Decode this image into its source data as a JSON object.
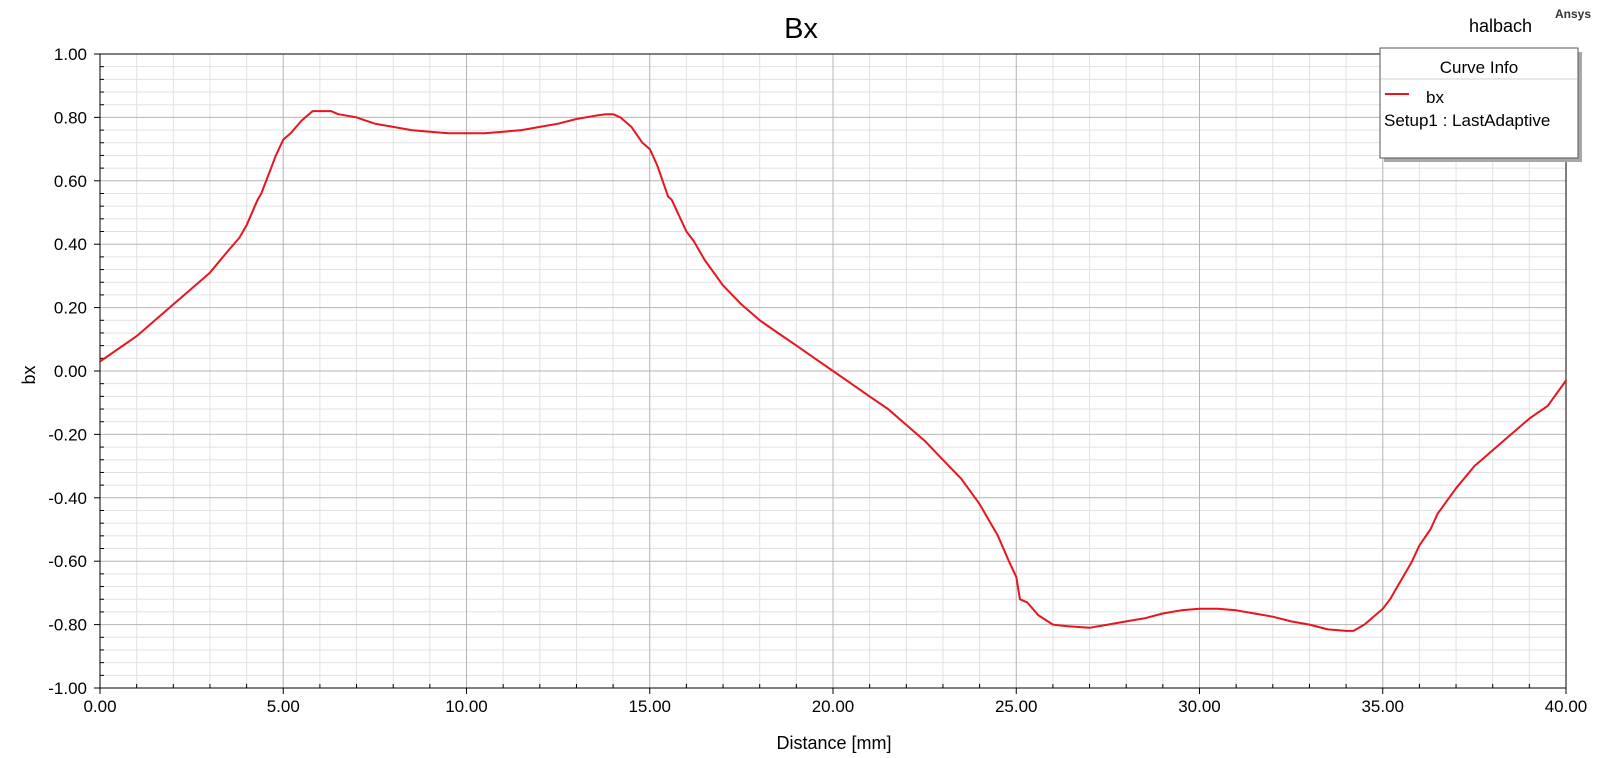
{
  "header": {
    "project_name": "halbach",
    "brand": "Ansys"
  },
  "legend": {
    "title": "Curve Info",
    "entries": [
      {
        "name": "bx",
        "detail": "Setup1 : LastAdaptive"
      }
    ],
    "position": "top-right"
  },
  "colors": {
    "series": "#e8141e",
    "major_grid": "#b4b4b4",
    "minor_grid": "#e1e1e1",
    "axis": "#000000"
  },
  "chart_data": {
    "type": "line",
    "title": "Bx",
    "xlabel": "Distance [mm]",
    "ylabel": "bx",
    "xlim": [
      0,
      40
    ],
    "ylim": [
      -1,
      1
    ],
    "x_ticks": [
      0,
      5,
      10,
      15,
      20,
      25,
      30,
      35,
      40
    ],
    "y_ticks": [
      -1,
      -0.8,
      -0.6,
      -0.4,
      -0.2,
      0,
      0.2,
      0.4,
      0.6,
      0.8,
      1
    ],
    "x_tick_labels": [
      "0.00",
      "5.00",
      "10.00",
      "15.00",
      "20.00",
      "25.00",
      "30.00",
      "35.00",
      "40.00"
    ],
    "y_tick_labels": [
      "-1.00",
      "-0.80",
      "-0.60",
      "-0.40",
      "-0.20",
      "0.00",
      "0.20",
      "0.40",
      "0.60",
      "0.80",
      "1.00"
    ],
    "grid": true,
    "series": [
      {
        "name": "bx",
        "x": [
          0.0,
          0.5,
          1.0,
          1.5,
          2.0,
          2.5,
          3.0,
          3.5,
          3.8,
          4.0,
          4.3,
          4.4,
          4.6,
          4.8,
          5.0,
          5.2,
          5.5,
          5.8,
          6.0,
          6.3,
          6.5,
          7.0,
          7.5,
          8.0,
          8.5,
          9.0,
          9.5,
          10.0,
          10.5,
          11.0,
          11.5,
          12.0,
          12.5,
          13.0,
          13.5,
          13.8,
          14.0,
          14.2,
          14.5,
          14.8,
          15.0,
          15.2,
          15.5,
          15.6,
          16.0,
          16.2,
          16.5,
          17.0,
          17.5,
          18.0,
          18.5,
          19.0,
          19.5,
          20.0,
          20.5,
          21.0,
          21.5,
          22.0,
          22.5,
          23.0,
          23.5,
          24.0,
          24.5,
          24.8,
          25.0,
          25.1,
          25.3,
          25.6,
          26.0,
          26.4,
          27.0,
          27.5,
          28.0,
          28.5,
          29.0,
          29.5,
          30.0,
          30.5,
          31.0,
          31.5,
          32.0,
          32.5,
          33.0,
          33.5,
          34.0,
          34.2,
          34.5,
          35.0,
          35.2,
          35.5,
          35.8,
          36.0,
          36.3,
          36.5,
          37.0,
          37.5,
          38.0,
          38.5,
          39.0,
          39.5,
          40.0
        ],
        "y": [
          0.03,
          0.07,
          0.11,
          0.16,
          0.21,
          0.26,
          0.31,
          0.38,
          0.42,
          0.46,
          0.54,
          0.56,
          0.62,
          0.68,
          0.73,
          0.75,
          0.79,
          0.82,
          0.82,
          0.82,
          0.81,
          0.8,
          0.78,
          0.77,
          0.76,
          0.755,
          0.75,
          0.75,
          0.75,
          0.755,
          0.76,
          0.77,
          0.78,
          0.795,
          0.805,
          0.81,
          0.81,
          0.8,
          0.77,
          0.72,
          0.7,
          0.65,
          0.55,
          0.54,
          0.44,
          0.41,
          0.35,
          0.27,
          0.21,
          0.16,
          0.12,
          0.08,
          0.04,
          0.0,
          -0.04,
          -0.08,
          -0.12,
          -0.17,
          -0.22,
          -0.28,
          -0.34,
          -0.42,
          -0.52,
          -0.6,
          -0.65,
          -0.72,
          -0.73,
          -0.77,
          -0.8,
          -0.805,
          -0.81,
          -0.8,
          -0.79,
          -0.78,
          -0.765,
          -0.755,
          -0.75,
          -0.75,
          -0.755,
          -0.765,
          -0.775,
          -0.79,
          -0.8,
          -0.815,
          -0.82,
          -0.82,
          -0.8,
          -0.75,
          -0.72,
          -0.66,
          -0.6,
          -0.55,
          -0.5,
          -0.45,
          -0.37,
          -0.3,
          -0.25,
          -0.2,
          -0.15,
          -0.11,
          -0.03
        ]
      }
    ]
  }
}
